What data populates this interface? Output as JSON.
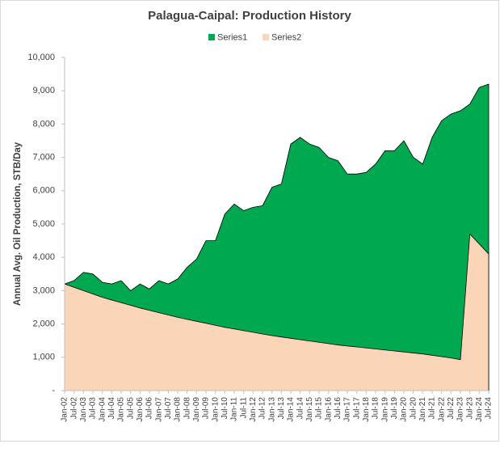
{
  "chart_data": {
    "type": "area",
    "title": "Palagua-Caipal:  Production History",
    "y_label": "Annual Avg. Oil Production, STB/Day",
    "legend": "top",
    "categories": [
      "Jan-02",
      "Jul-02",
      "Jan-03",
      "Jul-03",
      "Jan-04",
      "Jul-04",
      "Jan-05",
      "Jul-05",
      "Jan-06",
      "Jul-06",
      "Jan-07",
      "Jul-07",
      "Jan-08",
      "Jul-08",
      "Jan-09",
      "Jul-09",
      "Jan-10",
      "Jul-10",
      "Jan-11",
      "Jul-11",
      "Jan-12",
      "Jul-12",
      "Jan-13",
      "Jul-13",
      "Jan-14",
      "Jul-14",
      "Jan-15",
      "Jul-15",
      "Jan-16",
      "Jul-16",
      "Jan-17",
      "Jul-17",
      "Jan-18",
      "Jul-18",
      "Jan-19",
      "Jul-19",
      "Jan-20",
      "Jul-20",
      "Jan-21",
      "Jul-21",
      "Jan-22",
      "Jul-22",
      "Jan-23",
      "Jul-23",
      "Jan-24",
      "Jul-24"
    ],
    "series": [
      {
        "name": "Series1",
        "color": "#00a850",
        "values": [
          3200,
          3300,
          3550,
          3500,
          3250,
          3200,
          3300,
          3000,
          3200,
          3050,
          3300,
          3200,
          3350,
          3700,
          3950,
          4500,
          4500,
          5300,
          5600,
          5400,
          5500,
          5550,
          6100,
          6200,
          7400,
          7600,
          7400,
          7300,
          7000,
          6900,
          6500,
          6500,
          6550,
          6800,
          7200,
          7200,
          7500,
          7000,
          6800,
          7600,
          8100,
          8300,
          8400,
          8600,
          9100,
          9200
        ]
      },
      {
        "name": "Series2",
        "color": "#fbd5b8",
        "values": [
          3200,
          3100,
          3000,
          2900,
          2800,
          2720,
          2640,
          2560,
          2480,
          2410,
          2340,
          2270,
          2200,
          2140,
          2080,
          2020,
          1960,
          1900,
          1850,
          1800,
          1750,
          1700,
          1650,
          1610,
          1570,
          1530,
          1490,
          1450,
          1410,
          1370,
          1340,
          1310,
          1280,
          1250,
          1220,
          1190,
          1160,
          1130,
          1100,
          1060,
          1020,
          980,
          930,
          4700,
          4400,
          4100
        ]
      }
    ],
    "ylim": [
      0,
      10000
    ],
    "yticks": [
      {
        "value": 0,
        "label": "-"
      },
      {
        "value": 1000,
        "label": "1,000"
      },
      {
        "value": 2000,
        "label": "2,000"
      },
      {
        "value": 3000,
        "label": "3,000"
      },
      {
        "value": 4000,
        "label": "4,000"
      },
      {
        "value": 5000,
        "label": "5,000"
      },
      {
        "value": 6000,
        "label": "6,000"
      },
      {
        "value": 7000,
        "label": "7,000"
      },
      {
        "value": 8000,
        "label": "8,000"
      },
      {
        "value": 9000,
        "label": "9,000"
      },
      {
        "value": 10000,
        "label": "10,000"
      }
    ]
  }
}
